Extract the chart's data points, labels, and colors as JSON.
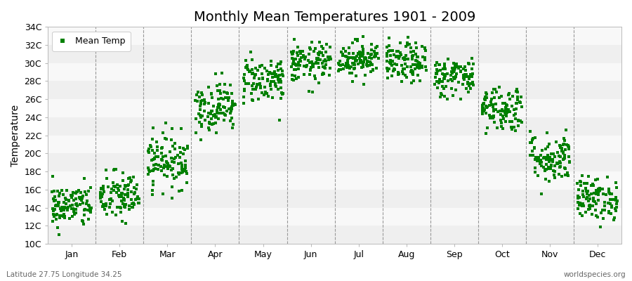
{
  "title": "Monthly Mean Temperatures 1901 - 2009",
  "ylabel": "Temperature",
  "subtitle_left": "Latitude 27.75 Longitude 34.25",
  "subtitle_right": "worldspecies.org",
  "legend_label": "Mean Temp",
  "ylim": [
    10,
    34
  ],
  "yticks": [
    10,
    12,
    14,
    16,
    18,
    20,
    22,
    24,
    26,
    28,
    30,
    32,
    34
  ],
  "ytick_labels": [
    "10C",
    "12C",
    "14C",
    "16C",
    "18C",
    "20C",
    "22C",
    "24C",
    "26C",
    "28C",
    "30C",
    "32C",
    "34C"
  ],
  "months": [
    "Jan",
    "Feb",
    "Mar",
    "Apr",
    "May",
    "Jun",
    "Jul",
    "Aug",
    "Sep",
    "Oct",
    "Nov",
    "Dec"
  ],
  "month_means": [
    14.2,
    15.2,
    19.2,
    25.2,
    28.2,
    30.0,
    30.5,
    30.0,
    28.5,
    25.0,
    19.5,
    15.0
  ],
  "month_stds": [
    1.2,
    1.4,
    1.5,
    1.4,
    1.3,
    1.1,
    1.0,
    1.1,
    1.1,
    1.3,
    1.4,
    1.2
  ],
  "n_years": 109,
  "marker_color": "#008000",
  "marker_size": 3.0,
  "band_color_even": "#efefef",
  "band_color_odd": "#f8f8f8",
  "grid_color": "#999999",
  "title_fontsize": 14,
  "axis_fontsize": 10,
  "tick_fontsize": 9,
  "legend_fontsize": 9
}
